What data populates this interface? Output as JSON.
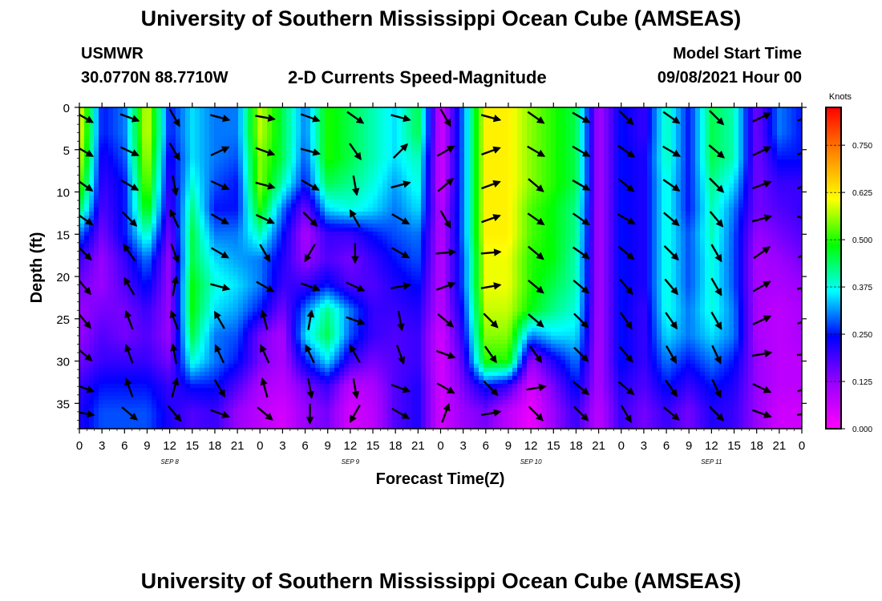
{
  "header": {
    "title_top": "University of Southern Mississippi Ocean Cube (AMSEAS)",
    "title_bottom": "University of Southern Mississippi Ocean Cube (AMSEAS)",
    "station": "USMWR",
    "location": "30.0770N  88.7710W",
    "product": "2-D Currents Speed-Magnitude",
    "model_label": "Model Start Time",
    "model_time": "09/08/2021 Hour 00"
  },
  "chart_data": {
    "type": "heatmap",
    "title": "2-D Currents Speed-Magnitude",
    "xlabel": "Forecast Time(Z)",
    "ylabel": "Depth (ft)",
    "y_reversed": true,
    "ylim": [
      0,
      38
    ],
    "y_ticks": [
      0,
      5,
      10,
      15,
      20,
      25,
      30,
      35
    ],
    "x_range_hours": [
      0,
      96
    ],
    "x_tick_labels": [
      "0",
      "3",
      "6",
      "9",
      "12",
      "15",
      "18",
      "21",
      "0",
      "3",
      "6",
      "9",
      "12",
      "15",
      "18",
      "21",
      "0",
      "3",
      "6",
      "9",
      "12",
      "15",
      "18",
      "21",
      "0",
      "3",
      "6",
      "9",
      "12",
      "15",
      "18",
      "21",
      "0"
    ],
    "day_labels": [
      {
        "label": "SEP 8",
        "hour": 12
      },
      {
        "label": "SEP 9",
        "hour": 36
      },
      {
        "label": "SEP 10",
        "hour": 60
      },
      {
        "label": "SEP 11",
        "hour": 84
      }
    ],
    "colorbar": {
      "title": "Knots",
      "range": [
        0,
        0.85
      ],
      "tick_values": [
        0.0,
        0.125,
        0.25,
        0.375,
        0.5,
        0.625,
        0.75
      ],
      "tick_labels": [
        "0.000",
        "0.125",
        "0.250",
        "0.375",
        "0.500",
        "0.625",
        "0.750"
      ],
      "colors": [
        "#ff00ff",
        "#9900ff",
        "#0000ff",
        "#00ffff",
        "#00ff00",
        "#ffff00",
        "#ff8800",
        "#ff0000"
      ]
    },
    "depths_ft": [
      0,
      3,
      6,
      9,
      12,
      15,
      18,
      21,
      24,
      27,
      30,
      33,
      36,
      38
    ],
    "hours": [
      0,
      3,
      6,
      9,
      12,
      15,
      18,
      21,
      24,
      27,
      30,
      33,
      36,
      39,
      42,
      45,
      48,
      51,
      54,
      57,
      60,
      63,
      66,
      69,
      72,
      75,
      78,
      81,
      84,
      87,
      90,
      93,
      96
    ],
    "speed_knots": [
      [
        0.62,
        0.25,
        0.3,
        0.6,
        0.25,
        0.35,
        0.3,
        0.3,
        0.58,
        0.45,
        0.3,
        0.5,
        0.45,
        0.4,
        0.35,
        0.45,
        0.05,
        0.3,
        0.62,
        0.62,
        0.55,
        0.5,
        0.45,
        0.1,
        0.25,
        0.2,
        0.4,
        0.25,
        0.45,
        0.4,
        0.15,
        0.3,
        0.25
      ],
      [
        0.62,
        0.25,
        0.3,
        0.6,
        0.25,
        0.35,
        0.3,
        0.3,
        0.58,
        0.45,
        0.3,
        0.5,
        0.45,
        0.4,
        0.35,
        0.45,
        0.05,
        0.3,
        0.62,
        0.62,
        0.55,
        0.5,
        0.45,
        0.1,
        0.25,
        0.2,
        0.4,
        0.25,
        0.45,
        0.4,
        0.15,
        0.3,
        0.25
      ],
      [
        0.6,
        0.22,
        0.28,
        0.58,
        0.22,
        0.35,
        0.3,
        0.28,
        0.55,
        0.45,
        0.28,
        0.5,
        0.45,
        0.4,
        0.35,
        0.4,
        0.05,
        0.3,
        0.62,
        0.62,
        0.55,
        0.5,
        0.45,
        0.1,
        0.25,
        0.22,
        0.4,
        0.25,
        0.45,
        0.4,
        0.15,
        0.25,
        0.25
      ],
      [
        0.55,
        0.2,
        0.25,
        0.55,
        0.2,
        0.38,
        0.28,
        0.25,
        0.55,
        0.4,
        0.25,
        0.45,
        0.42,
        0.38,
        0.32,
        0.38,
        0.05,
        0.3,
        0.62,
        0.62,
        0.55,
        0.5,
        0.45,
        0.1,
        0.25,
        0.22,
        0.38,
        0.25,
        0.42,
        0.35,
        0.15,
        0.2,
        0.2
      ],
      [
        0.45,
        0.18,
        0.25,
        0.5,
        0.18,
        0.42,
        0.25,
        0.25,
        0.5,
        0.3,
        0.15,
        0.35,
        0.38,
        0.35,
        0.3,
        0.35,
        0.08,
        0.3,
        0.62,
        0.62,
        0.52,
        0.48,
        0.42,
        0.1,
        0.25,
        0.22,
        0.38,
        0.25,
        0.4,
        0.3,
        0.15,
        0.18,
        0.2
      ],
      [
        0.3,
        0.15,
        0.25,
        0.4,
        0.15,
        0.45,
        0.3,
        0.3,
        0.4,
        0.25,
        0.1,
        0.2,
        0.2,
        0.25,
        0.28,
        0.3,
        0.08,
        0.3,
        0.62,
        0.62,
        0.52,
        0.48,
        0.42,
        0.1,
        0.25,
        0.22,
        0.38,
        0.28,
        0.4,
        0.28,
        0.12,
        0.15,
        0.18
      ],
      [
        0.2,
        0.12,
        0.2,
        0.3,
        0.12,
        0.45,
        0.35,
        0.32,
        0.3,
        0.22,
        0.12,
        0.18,
        0.15,
        0.2,
        0.25,
        0.28,
        0.08,
        0.28,
        0.6,
        0.6,
        0.5,
        0.48,
        0.4,
        0.1,
        0.25,
        0.22,
        0.38,
        0.28,
        0.38,
        0.28,
        0.1,
        0.12,
        0.15
      ],
      [
        0.15,
        0.12,
        0.18,
        0.25,
        0.12,
        0.48,
        0.38,
        0.35,
        0.3,
        0.2,
        0.2,
        0.25,
        0.18,
        0.18,
        0.22,
        0.25,
        0.08,
        0.28,
        0.6,
        0.6,
        0.5,
        0.45,
        0.4,
        0.1,
        0.25,
        0.22,
        0.38,
        0.28,
        0.38,
        0.28,
        0.1,
        0.1,
        0.12
      ],
      [
        0.12,
        0.15,
        0.15,
        0.2,
        0.12,
        0.48,
        0.35,
        0.32,
        0.25,
        0.15,
        0.3,
        0.42,
        0.3,
        0.2,
        0.2,
        0.22,
        0.08,
        0.25,
        0.58,
        0.58,
        0.48,
        0.42,
        0.38,
        0.1,
        0.25,
        0.2,
        0.38,
        0.3,
        0.38,
        0.3,
        0.1,
        0.08,
        0.1
      ],
      [
        0.12,
        0.18,
        0.15,
        0.18,
        0.12,
        0.45,
        0.3,
        0.28,
        0.15,
        0.1,
        0.35,
        0.45,
        0.28,
        0.2,
        0.18,
        0.2,
        0.05,
        0.22,
        0.55,
        0.55,
        0.3,
        0.35,
        0.35,
        0.1,
        0.25,
        0.2,
        0.35,
        0.3,
        0.35,
        0.3,
        0.1,
        0.08,
        0.1
      ],
      [
        0.15,
        0.2,
        0.2,
        0.2,
        0.15,
        0.38,
        0.3,
        0.25,
        0.15,
        0.1,
        0.25,
        0.35,
        0.2,
        0.15,
        0.18,
        0.2,
        0.05,
        0.18,
        0.5,
        0.5,
        0.12,
        0.22,
        0.3,
        0.1,
        0.25,
        0.2,
        0.3,
        0.25,
        0.3,
        0.25,
        0.12,
        0.08,
        0.08
      ],
      [
        0.2,
        0.25,
        0.25,
        0.25,
        0.2,
        0.25,
        0.25,
        0.18,
        0.1,
        0.08,
        0.15,
        0.2,
        0.08,
        0.1,
        0.18,
        0.22,
        0.05,
        0.15,
        0.25,
        0.2,
        0.05,
        0.15,
        0.25,
        0.1,
        0.22,
        0.18,
        0.25,
        0.2,
        0.25,
        0.22,
        0.12,
        0.08,
        0.08
      ],
      [
        0.22,
        0.28,
        0.28,
        0.28,
        0.22,
        0.18,
        0.2,
        0.12,
        0.08,
        0.05,
        0.12,
        0.15,
        0.05,
        0.08,
        0.18,
        0.22,
        0.05,
        0.12,
        0.15,
        0.08,
        0.02,
        0.12,
        0.2,
        0.08,
        0.2,
        0.15,
        0.2,
        0.15,
        0.22,
        0.2,
        0.12,
        0.06,
        0.06
      ],
      [
        0.22,
        0.28,
        0.28,
        0.28,
        0.22,
        0.18,
        0.2,
        0.12,
        0.08,
        0.05,
        0.12,
        0.15,
        0.05,
        0.08,
        0.18,
        0.22,
        0.05,
        0.12,
        0.15,
        0.08,
        0.02,
        0.12,
        0.2,
        0.08,
        0.2,
        0.15,
        0.2,
        0.15,
        0.22,
        0.2,
        0.12,
        0.06,
        0.06
      ]
    ],
    "vectors": {
      "note": "current direction (degrees, math convention) and speed (knots) at sampled hours/depths",
      "hours": [
        0,
        6,
        12,
        18,
        24,
        30,
        36,
        42,
        48,
        54,
        60,
        66,
        72,
        78,
        84,
        90,
        96
      ],
      "depths_ft": [
        1,
        5,
        9,
        13,
        17,
        21,
        25,
        29,
        33,
        36
      ],
      "direction_deg": [
        [
          -30,
          -20,
          -60,
          -15,
          -10,
          -20,
          -35,
          -15,
          -60,
          -15,
          -35,
          -30,
          -45,
          -35,
          -45,
          25,
          20
        ],
        [
          -30,
          -25,
          -60,
          25,
          -20,
          -15,
          -55,
          45,
          30,
          20,
          -30,
          -30,
          -35,
          -30,
          -40,
          25,
          20
        ],
        [
          -35,
          -30,
          -80,
          -25,
          -15,
          -30,
          -80,
          15,
          40,
          20,
          -40,
          -30,
          -40,
          -35,
          -45,
          20,
          20
        ],
        [
          -35,
          -45,
          115,
          -30,
          -25,
          -45,
          120,
          -30,
          -60,
          20,
          -35,
          -35,
          -30,
          -40,
          -50,
          15,
          -15
        ],
        [
          -45,
          125,
          -70,
          -30,
          -60,
          -120,
          -90,
          -30,
          5,
          5,
          -40,
          -35,
          -40,
          -45,
          -60,
          35,
          30
        ],
        [
          -50,
          120,
          80,
          -15,
          -30,
          -20,
          -25,
          10,
          20,
          10,
          -40,
          -40,
          -50,
          -50,
          -60,
          30,
          15
        ],
        [
          -50,
          110,
          110,
          120,
          105,
          80,
          -20,
          -80,
          -40,
          -45,
          -40,
          -45,
          -55,
          -55,
          -60,
          25,
          20
        ],
        [
          -40,
          110,
          100,
          115,
          115,
          115,
          120,
          -70,
          -20,
          -55,
          -55,
          -45,
          -50,
          -60,
          -65,
          10,
          5
        ],
        [
          -20,
          110,
          75,
          -60,
          105,
          -80,
          -80,
          -20,
          -30,
          -45,
          10,
          -40,
          -40,
          -55,
          -65,
          -25,
          20
        ],
        [
          -10,
          -40,
          -50,
          -20,
          -40,
          -90,
          -120,
          -30,
          70,
          10,
          -45,
          -45,
          -60,
          -40,
          -45,
          -20,
          10
        ]
      ]
    }
  }
}
